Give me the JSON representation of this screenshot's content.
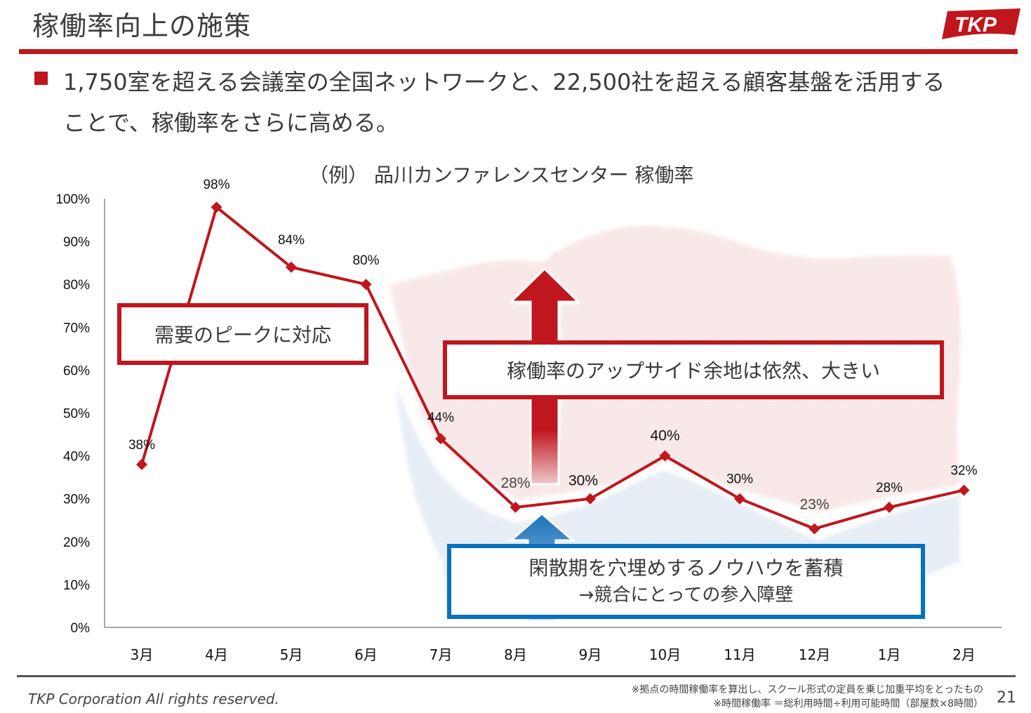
{
  "header": {
    "title": "稼働率向上の施策",
    "logo_text": "TKP"
  },
  "lead": {
    "line1": "1,750室を超える会議室の全国ネットワークと、22,500社を超える顧客基盤を活用する",
    "line2": "ことで、稼働率をさらに高める。"
  },
  "colors": {
    "brand_red": "#c0161d",
    "accent_blue": "#0a70bd",
    "line_red": "#c0161d",
    "axis_gray": "#888888"
  },
  "chart_data": {
    "type": "line",
    "title": "（例） 品川カンファレンスセンター 稼働率",
    "xlabel": "",
    "ylabel": "",
    "categories": [
      "3月",
      "4月",
      "5月",
      "6月",
      "7月",
      "8月",
      "9月",
      "10月",
      "11月",
      "12月",
      "1月",
      "2月"
    ],
    "series": [
      {
        "name": "稼働率",
        "values": [
          38,
          98,
          84,
          80,
          44,
          28,
          30,
          40,
          30,
          23,
          28,
          32
        ],
        "labels": [
          "38%",
          "98%",
          "84%",
          "80%",
          "44%",
          "28%",
          "30%",
          "40%",
          "30%",
          "23%",
          "28%",
          "32%"
        ],
        "marker": "diamond"
      }
    ],
    "yticks": [
      "0%",
      "10%",
      "20%",
      "30%",
      "40%",
      "50%",
      "60%",
      "70%",
      "80%",
      "90%",
      "100%"
    ],
    "ylim": [
      0,
      100
    ],
    "grid": false,
    "legend": "none",
    "annotations": {
      "peak_callout": "需要のピークに対応",
      "upside_callout": "稼働率のアップサイド余地は依然、大きい",
      "offseason_callout_line1": "閑散期を穴埋めするノウハウを蓄積",
      "offseason_callout_line2": "→競合にとっての参入障壁"
    }
  },
  "footer": {
    "copyright": "TKP Corporation All rights reserved.",
    "note1": "※拠点の時間稼働率を算出し、スクール形式の定員を乗じ加重平均をとったもの",
    "note2": "※時間稼働率 ＝総利用時間÷利用可能時間（部屋数×8時間）",
    "page_number": "21"
  }
}
